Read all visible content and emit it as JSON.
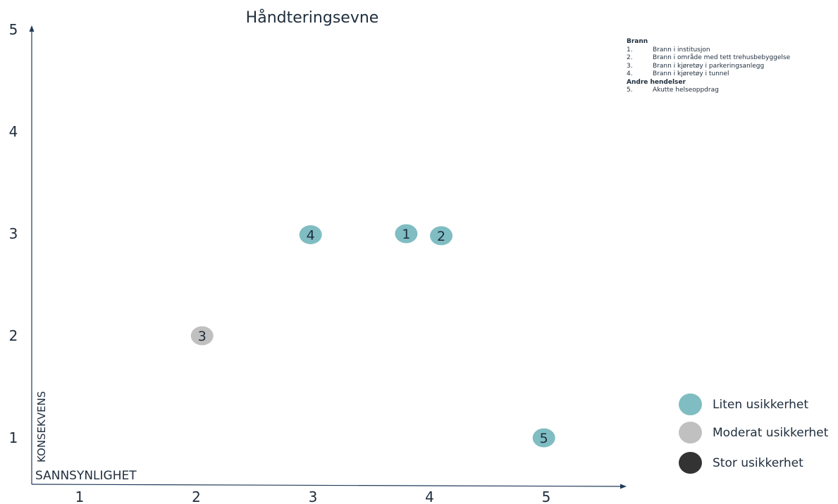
{
  "chart_data": {
    "type": "scatter",
    "title": "Håndteringsevne",
    "xlabel": "SANNSYNLIGHET",
    "ylabel": "KONSEKVENS",
    "xlim": [
      0.6,
      5.7
    ],
    "ylim": [
      0.55,
      5.25
    ],
    "x_ticks": [
      "1",
      "2",
      "3",
      "4",
      "5"
    ],
    "y_ticks": [
      "1",
      "2",
      "3",
      "4",
      "5"
    ],
    "points": [
      {
        "label": "1",
        "x": 3.8,
        "y": 3.0,
        "uncertainty": "liten"
      },
      {
        "label": "2",
        "x": 4.1,
        "y": 2.98,
        "uncertainty": "liten"
      },
      {
        "label": "3",
        "x": 2.05,
        "y": 2.0,
        "uncertainty": "moderat"
      },
      {
        "label": "4",
        "x": 2.98,
        "y": 2.99,
        "uncertainty": "liten"
      },
      {
        "label": "5",
        "x": 4.98,
        "y": 1.0,
        "uncertainty": "liten"
      }
    ],
    "grid": false
  },
  "colors": {
    "liten": "#7fbdc2",
    "moderat": "#c0c0c0",
    "stor": "#333333",
    "axis": "#1f3a5a",
    "text": "#1f2d3d"
  },
  "events_legend": {
    "groups": [
      {
        "title": "Brann",
        "items": [
          {
            "num": "1.",
            "text": "Brann i institusjon"
          },
          {
            "num": "2.",
            "text": "Brann i område med tett trehusbebyggelse"
          },
          {
            "num": "3.",
            "text": "Brann i kjøretøy i parkeringsanlegg"
          },
          {
            "num": "4.",
            "text": "Brann i kjøretøy i tunnel"
          }
        ]
      },
      {
        "title": "Andre hendelser",
        "items": [
          {
            "num": "5.",
            "text": "Akutte helseoppdrag"
          }
        ]
      }
    ]
  },
  "uncertainty_legend": [
    {
      "key": "liten",
      "label": "Liten usikkerhet"
    },
    {
      "key": "moderat",
      "label": "Moderat usikkerhet"
    },
    {
      "key": "stor",
      "label": "Stor usikkerhet"
    }
  ]
}
